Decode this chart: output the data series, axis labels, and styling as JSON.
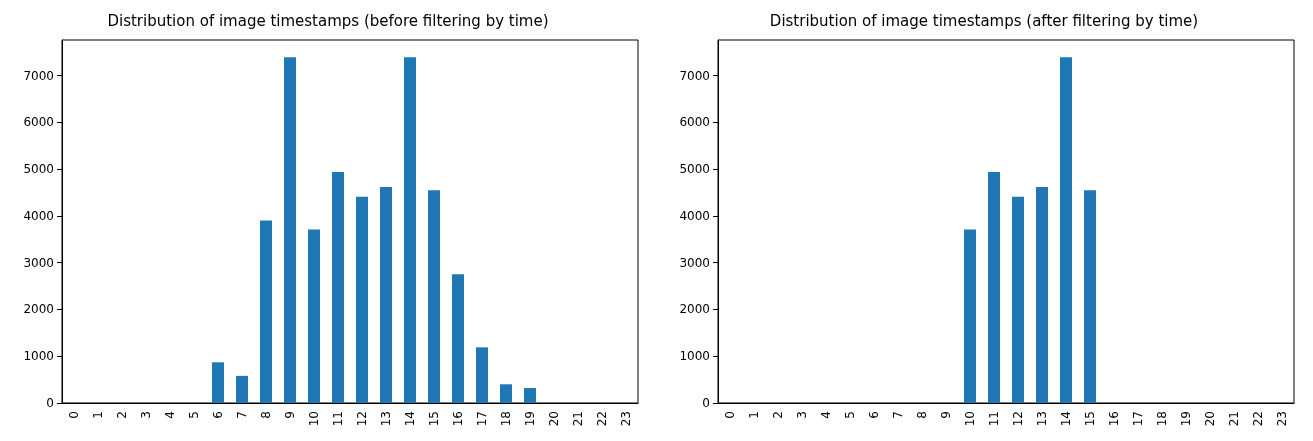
{
  "chart_data": [
    {
      "type": "bar",
      "title": "Distribution of image timestamps (before filtering by time)",
      "categories": [
        "0",
        "1",
        "2",
        "3",
        "4",
        "5",
        "6",
        "7",
        "8",
        "9",
        "10",
        "11",
        "12",
        "13",
        "14",
        "15",
        "16",
        "17",
        "18",
        "19",
        "20",
        "21",
        "22",
        "23"
      ],
      "values": [
        0,
        0,
        0,
        0,
        0,
        0,
        870,
        580,
        3900,
        7390,
        3710,
        4940,
        4410,
        4620,
        7390,
        4550,
        2750,
        1190,
        400,
        320,
        0,
        0,
        0,
        0
      ],
      "color": "#1f77b4",
      "ylim": [
        0,
        7760
      ],
      "yticks": [
        0,
        1000,
        2000,
        3000,
        4000,
        5000,
        6000,
        7000
      ],
      "grid": false
    },
    {
      "type": "bar",
      "title": "Distribution of image timestamps (after filtering by time)",
      "categories": [
        "0",
        "1",
        "2",
        "3",
        "4",
        "5",
        "6",
        "7",
        "8",
        "9",
        "10",
        "11",
        "12",
        "13",
        "14",
        "15",
        "16",
        "17",
        "18",
        "19",
        "20",
        "21",
        "22",
        "23"
      ],
      "values": [
        0,
        0,
        0,
        0,
        0,
        0,
        0,
        0,
        0,
        0,
        3710,
        4940,
        4410,
        4620,
        7390,
        4550,
        0,
        0,
        0,
        0,
        0,
        0,
        0,
        0
      ],
      "color": "#1f77b4",
      "ylim": [
        0,
        7760
      ],
      "yticks": [
        0,
        1000,
        2000,
        3000,
        4000,
        5000,
        6000,
        7000
      ],
      "grid": false
    }
  ]
}
